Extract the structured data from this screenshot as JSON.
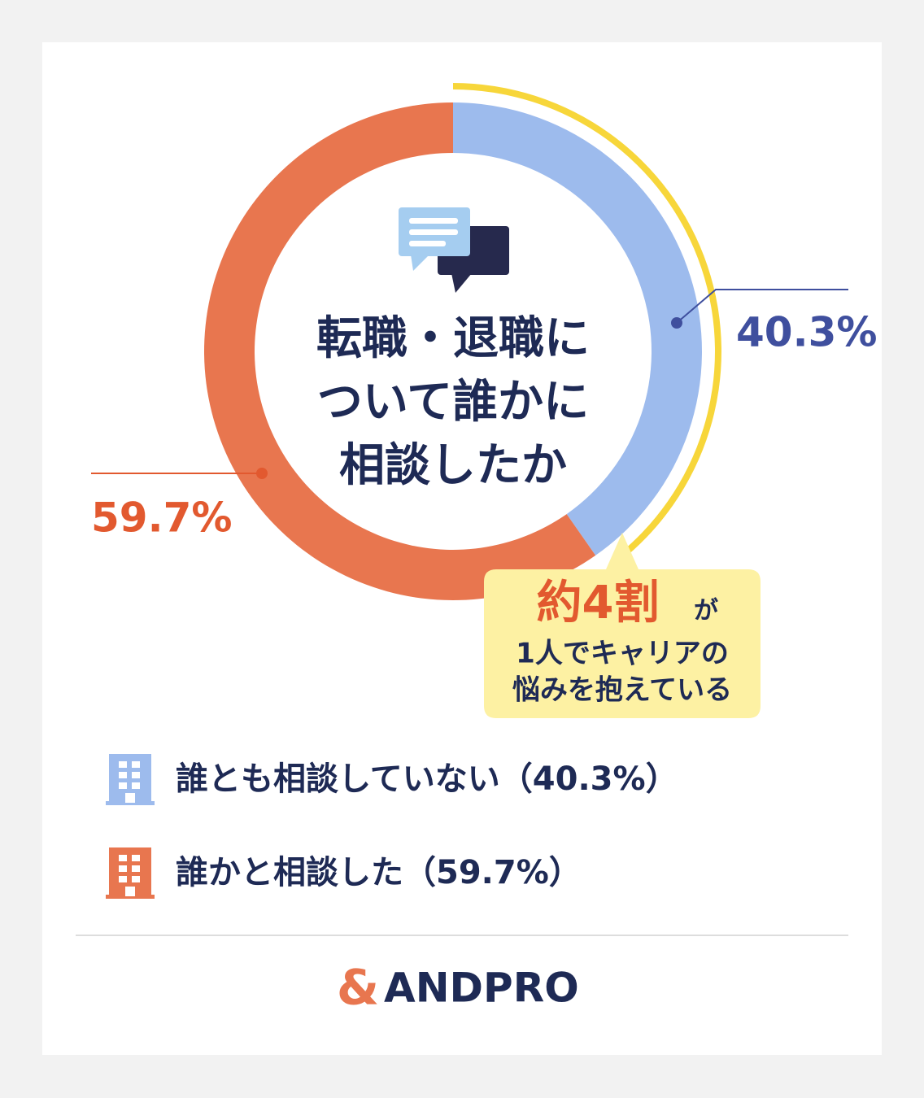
{
  "chart_data": {
    "type": "donut",
    "title_lines": [
      "転職・退職に",
      "ついて誰かに",
      "相談したか"
    ],
    "categories": [
      "誰とも相談していない（40.3%）",
      "誰かと相談した（59.7%）"
    ],
    "values": [
      40.3,
      59.7
    ],
    "value_labels": [
      "40.3%",
      "59.7%"
    ],
    "colors": [
      "#9dbbed",
      "#e8764f"
    ],
    "label_colors": [
      "#3f4f9e",
      "#e2592f"
    ],
    "highlight_color": "#f7d63a",
    "callout": {
      "highlight": "約4割",
      "particle": "が",
      "lines": [
        "1人でキャリアの",
        "悩みを抱えている"
      ]
    }
  },
  "footer": {
    "logo_mark": "&",
    "brand": "ANDPRO"
  }
}
